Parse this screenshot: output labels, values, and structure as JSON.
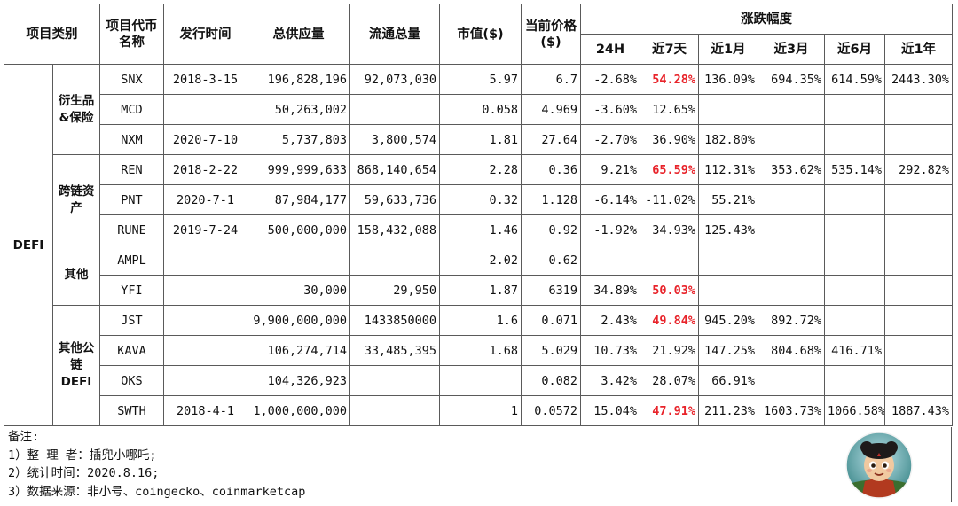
{
  "header": {
    "category": "项目类别",
    "code": "项目代币名称",
    "issue_date": "发行时间",
    "total_supply": "总供应量",
    "circulating": "流通总量",
    "market_cap": "市值($)",
    "price": "当前价格($)",
    "change_group": "涨跌幅度",
    "periods": [
      "24H",
      "近7天",
      "近1月",
      "近3月",
      "近6月",
      "近1年"
    ]
  },
  "category": "DEFI",
  "groups": [
    {
      "name": "衍生品&保险",
      "rows": [
        {
          "code": "SNX",
          "date": "2018-3-15",
          "supply": "196,828,196",
          "circ": "92,073,030",
          "mcap": "5.97",
          "price": "6.7",
          "changes": [
            "-2.68%",
            "54.28%",
            "136.09%",
            "694.35%",
            "614.59%",
            "2443.30%"
          ],
          "red": [
            false,
            true,
            false,
            false,
            false,
            false
          ]
        },
        {
          "code": "MCD",
          "date": "",
          "supply": "50,263,002",
          "circ": "",
          "mcap": "0.058",
          "price": "4.969",
          "changes": [
            "-3.60%",
            "12.65%",
            "",
            "",
            "",
            ""
          ],
          "red": [
            false,
            false,
            false,
            false,
            false,
            false
          ]
        },
        {
          "code": "NXM",
          "date": "2020-7-10",
          "supply": "5,737,803",
          "circ": "3,800,574",
          "mcap": "1.81",
          "price": "27.64",
          "changes": [
            "-2.70%",
            "36.90%",
            "182.80%",
            "",
            "",
            ""
          ],
          "red": [
            false,
            false,
            false,
            false,
            false,
            false
          ]
        }
      ]
    },
    {
      "name": "跨链资产",
      "rows": [
        {
          "code": "REN",
          "date": "2018-2-22",
          "supply": "999,999,633",
          "circ": "868,140,654",
          "mcap": "2.28",
          "price": "0.36",
          "changes": [
            "9.21%",
            "65.59%",
            "112.31%",
            "353.62%",
            "535.14%",
            "292.82%"
          ],
          "red": [
            false,
            true,
            false,
            false,
            false,
            false
          ]
        },
        {
          "code": "PNT",
          "date": "2020-7-1",
          "supply": "87,984,177",
          "circ": "59,633,736",
          "mcap": "0.32",
          "price": "1.128",
          "changes": [
            "-6.14%",
            "-11.02%",
            "55.21%",
            "",
            "",
            ""
          ],
          "red": [
            false,
            false,
            false,
            false,
            false,
            false
          ]
        },
        {
          "code": "RUNE",
          "date": "2019-7-24",
          "supply": "500,000,000",
          "circ": "158,432,088",
          "mcap": "1.46",
          "price": "0.92",
          "changes": [
            "-1.92%",
            "34.93%",
            "125.43%",
            "",
            "",
            ""
          ],
          "red": [
            false,
            false,
            false,
            false,
            false,
            false
          ]
        }
      ]
    },
    {
      "name": "其他",
      "rows": [
        {
          "code": "AMPL",
          "date": "",
          "supply": "",
          "circ": "",
          "mcap": "2.02",
          "price": "0.62",
          "changes": [
            "",
            "",
            "",
            "",
            "",
            ""
          ],
          "red": [
            false,
            false,
            false,
            false,
            false,
            false
          ]
        },
        {
          "code": "YFI",
          "date": "",
          "supply": "30,000",
          "circ": "29,950",
          "mcap": "1.87",
          "price": "6319",
          "changes": [
            "34.89%",
            "50.03%",
            "",
            "",
            "",
            ""
          ],
          "red": [
            false,
            true,
            false,
            false,
            false,
            false
          ]
        }
      ]
    },
    {
      "name": "其他公链DEFI",
      "rows": [
        {
          "code": "JST",
          "date": "",
          "supply": "9,900,000,000",
          "circ": "1433850000",
          "mcap": "1.6",
          "price": "0.071",
          "changes": [
            "2.43%",
            "49.84%",
            "945.20%",
            "892.72%",
            "",
            ""
          ],
          "red": [
            false,
            true,
            false,
            false,
            false,
            false
          ]
        },
        {
          "code": "KAVA",
          "date": "",
          "supply": "106,274,714",
          "circ": "33,485,395",
          "mcap": "1.68",
          "price": "5.029",
          "changes": [
            "10.73%",
            "21.92%",
            "147.25%",
            "804.68%",
            "416.71%",
            ""
          ],
          "red": [
            false,
            false,
            false,
            false,
            false,
            false
          ]
        },
        {
          "code": "OKS",
          "date": "",
          "supply": "104,326,923",
          "circ": "",
          "mcap": "",
          "price": "0.082",
          "changes": [
            "3.42%",
            "28.07%",
            "66.91%",
            "",
            "",
            ""
          ],
          "red": [
            false,
            false,
            false,
            false,
            false,
            false
          ]
        },
        {
          "code": "SWTH",
          "date": "2018-4-1",
          "supply": "1,000,000,000",
          "circ": "",
          "mcap": "1",
          "price": "0.0572",
          "changes": [
            "15.04%",
            "47.91%",
            "211.23%",
            "1603.73%",
            "1066.58%",
            "1887.43%"
          ],
          "red": [
            false,
            true,
            false,
            false,
            false,
            false
          ]
        }
      ]
    }
  ],
  "notes": [
    "备注:",
    "1）整 理 者：插兜小哪吒;",
    "2）统计时间：2020.8.16;",
    "3）数据来源：非小号、coingecko、coinmarketcap"
  ],
  "colors": {
    "highlight": "#e8232a",
    "grid": "#5a5a5a"
  },
  "avatar": "cartoon-character-avatar-icon"
}
